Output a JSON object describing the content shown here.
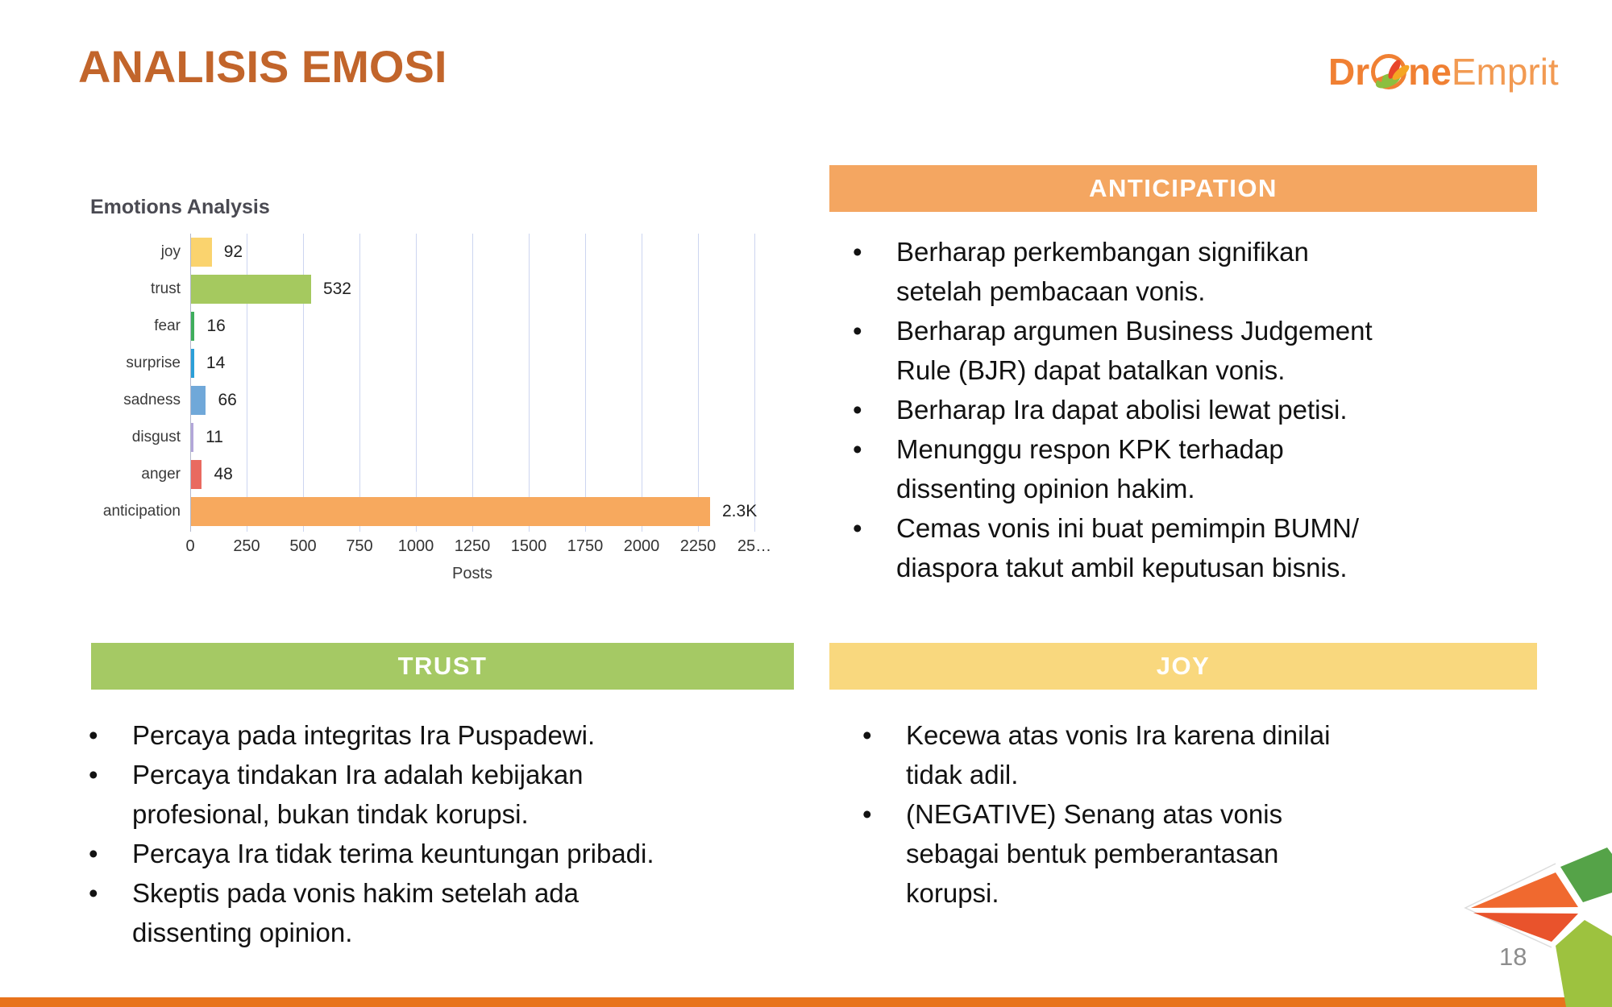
{
  "slide": {
    "title": "ANALISIS EMOSI",
    "title_color": "#c2652b",
    "page_number": "18"
  },
  "logo": {
    "part1": "Dr",
    "part2": "ne",
    "part3": "Emprit",
    "bold_color": "#f08033",
    "light_color": "#f29a52",
    "bird_icon": "bird-in-circle"
  },
  "chart_data": {
    "type": "bar",
    "orientation": "horizontal",
    "title": "Emotions Analysis",
    "xlabel": "Posts",
    "categories": [
      "joy",
      "trust",
      "fear",
      "surprise",
      "sadness",
      "disgust",
      "anger",
      "anticipation"
    ],
    "values": [
      92,
      532,
      16,
      14,
      66,
      11,
      48,
      2300
    ],
    "value_labels": [
      "92",
      "532",
      "16",
      "14",
      "66",
      "11",
      "48",
      "2.3K"
    ],
    "bar_colors": [
      "#fad36e",
      "#a5c95f",
      "#3fae5c",
      "#2b9fd8",
      "#70a8d9",
      "#b3a6d9",
      "#e96a60",
      "#f7a95e"
    ],
    "xlim": [
      0,
      2500
    ],
    "tick_step": 250,
    "tick_labels": [
      "0",
      "250",
      "500",
      "750",
      "1000",
      "1250",
      "1500",
      "1750",
      "2000",
      "2250",
      "25…"
    ],
    "grid": true,
    "legend": false
  },
  "sections": {
    "anticipation": {
      "header": "ANTICIPATION",
      "color": "#f4a661",
      "bullets": [
        [
          "Berharap perkembangan signifikan",
          "setelah pembacaan vonis."
        ],
        [
          "Berharap argumen Business Judgement",
          "Rule (BJR) dapat batalkan vonis."
        ],
        [
          "Berharap Ira dapat abolisi lewat petisi."
        ],
        [
          "Menunggu respon KPK terhadap",
          "dissenting opinion hakim."
        ],
        [
          "Cemas vonis ini buat pemimpin BUMN/",
          "diaspora takut ambil keputusan bisnis."
        ]
      ]
    },
    "trust": {
      "header": "TRUST",
      "color": "#a5c964",
      "bullets": [
        [
          "Percaya pada integritas Ira Puspadewi."
        ],
        [
          "Percaya tindakan Ira adalah kebijakan",
          "profesional, bukan tindak korupsi."
        ],
        [
          "Percaya Ira tidak terima keuntungan pribadi."
        ],
        [
          "Skeptis pada vonis hakim setelah ada",
          "dissenting opinion."
        ]
      ]
    },
    "joy": {
      "header": "JOY",
      "color": "#f9d87e",
      "bullets": [
        [
          "Kecewa atas vonis Ira karena dinilai",
          "tidak adil."
        ],
        [
          "(NEGATIVE) Senang atas vonis",
          "sebagai bentuk pemberantasan",
          "korupsi."
        ]
      ]
    }
  },
  "footer": {
    "bar_color": "#e8731c"
  },
  "corner_art_colors": {
    "dark_green": "#55a348",
    "light_green": "#9dc23f",
    "orange": "#f0692f",
    "red": "#e9532c"
  }
}
